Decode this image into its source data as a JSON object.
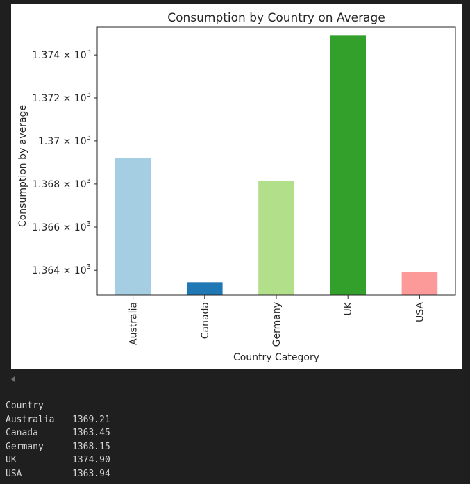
{
  "chart_data": {
    "type": "bar",
    "title": "Consumption by Country on Average",
    "xlabel": "Country Category",
    "ylabel": "Consumption by average",
    "categories": [
      "Australia",
      "Canada",
      "Germany",
      "UK",
      "USA"
    ],
    "values": [
      1369.21,
      1363.45,
      1368.15,
      1374.9,
      1363.94
    ],
    "colors": [
      "#a6cee3",
      "#1f78b4",
      "#b2df8a",
      "#33a02c",
      "#fb9a99"
    ],
    "ylim": [
      1362.85,
      1375.3
    ],
    "yticks": [
      1364,
      1366,
      1368,
      1370,
      1372,
      1374
    ],
    "ytick_labels": [
      {
        "base": "1.364",
        "mult": " × 10",
        "exp": "3"
      },
      {
        "base": "1.366",
        "mult": " × 10",
        "exp": "3"
      },
      {
        "base": "1.368",
        "mult": " × 10",
        "exp": "3"
      },
      {
        "base": "1.37",
        "mult": " × 10",
        "exp": "3"
      },
      {
        "base": "1.372",
        "mult": " × 10",
        "exp": "3"
      },
      {
        "base": "1.374",
        "mult": " × 10",
        "exp": "3"
      }
    ],
    "yscale": "log",
    "grid": false,
    "legend": "none"
  },
  "console": {
    "header": "Country",
    "rows": [
      {
        "name": "Australia",
        "value": "1369.21"
      },
      {
        "name": "Canada",
        "value": "1363.45"
      },
      {
        "name": "Germany",
        "value": "1368.15"
      },
      {
        "name": "UK",
        "value": "1374.90"
      },
      {
        "name": "USA",
        "value": "1363.94"
      }
    ]
  },
  "icons": {
    "scroll_arrow": "scroll-left-arrow-icon"
  }
}
